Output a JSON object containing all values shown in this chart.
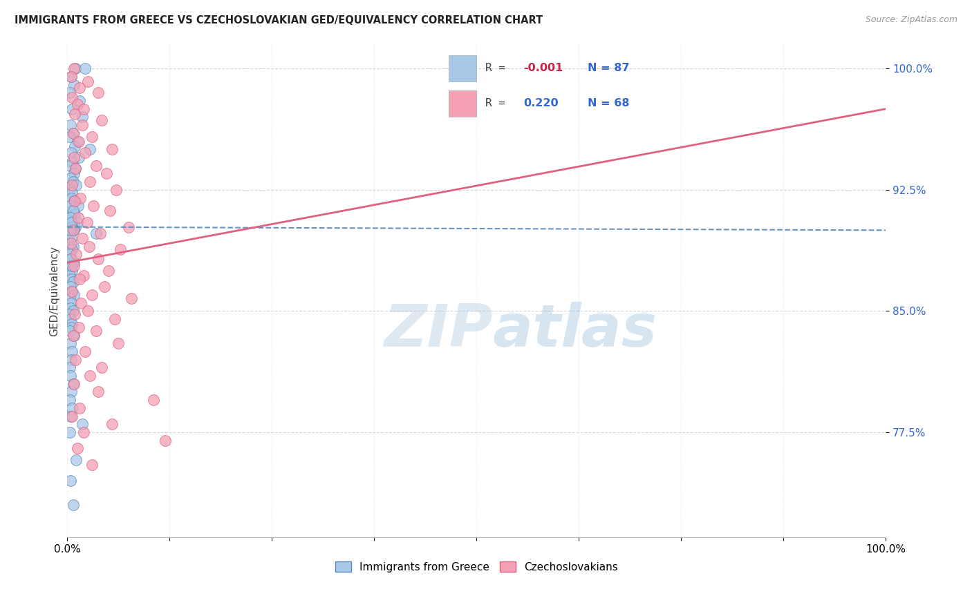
{
  "title": "IMMIGRANTS FROM GREECE VS CZECHOSLOVAKIAN GED/EQUIVALENCY CORRELATION CHART",
  "source": "Source: ZipAtlas.com",
  "ylabel": "GED/Equivalency",
  "yticks": [
    77.5,
    85.0,
    92.5,
    100.0
  ],
  "ytick_labels": [
    "77.5%",
    "85.0%",
    "92.5%",
    "100.0%"
  ],
  "xrange": [
    0.0,
    100.0
  ],
  "yrange": [
    71.0,
    101.5
  ],
  "color_blue": "#a8c8e8",
  "color_pink": "#f4a0b5",
  "trend_blue_color": "#5588bb",
  "trend_pink_color": "#e06080",
  "watermark_zip": "ZIP",
  "watermark_atlas": "atlas",
  "blue_r": -0.001,
  "blue_n": 87,
  "pink_r": 0.22,
  "pink_n": 68,
  "blue_trend_y0": 90.2,
  "blue_trend_y1": 90.0,
  "pink_trend_y0": 88.0,
  "pink_trend_y1": 97.5,
  "blue_points_x": [
    1.0,
    2.2,
    0.5,
    0.8,
    0.3,
    1.5,
    0.6,
    1.8,
    0.4,
    0.7,
    0.2,
    1.2,
    0.9,
    2.8,
    0.5,
    1.4,
    0.6,
    0.3,
    1.0,
    0.8,
    0.4,
    0.7,
    1.1,
    0.3,
    0.6,
    0.5,
    0.8,
    1.3,
    0.4,
    0.9,
    0.2,
    0.6,
    1.0,
    0.5,
    0.3,
    0.7,
    0.4,
    1.2,
    0.6,
    0.8,
    0.3,
    0.5,
    0.4,
    0.7,
    0.6,
    0.3,
    0.5,
    0.8,
    0.4,
    0.6,
    0.3,
    0.5,
    0.7,
    0.4,
    0.6,
    0.8,
    0.3,
    0.5,
    0.4,
    0.7,
    0.2,
    0.4,
    0.6,
    0.5,
    0.3,
    0.8,
    0.4,
    0.6,
    0.5,
    0.3,
    0.4,
    0.7,
    0.5,
    0.3,
    0.6,
    0.4,
    1.8,
    0.5,
    0.3,
    3.5,
    0.4,
    0.6,
    0.5,
    0.3,
    1.1,
    0.4,
    0.7
  ],
  "blue_points_y": [
    100.0,
    100.0,
    99.5,
    99.0,
    98.5,
    98.0,
    97.5,
    97.0,
    96.5,
    96.0,
    95.8,
    95.5,
    95.2,
    95.0,
    94.8,
    94.5,
    94.2,
    94.0,
    93.8,
    93.5,
    93.2,
    93.0,
    92.8,
    92.5,
    92.3,
    92.0,
    91.8,
    91.5,
    91.2,
    91.0,
    90.8,
    90.5,
    90.2,
    90.0,
    91.5,
    91.2,
    90.8,
    90.5,
    90.2,
    90.0,
    89.8,
    89.5,
    89.2,
    89.0,
    88.8,
    88.5,
    88.2,
    88.0,
    87.8,
    87.5,
    87.2,
    87.0,
    86.8,
    86.5,
    86.2,
    86.0,
    85.8,
    85.5,
    85.2,
    85.0,
    84.8,
    84.5,
    84.2,
    84.0,
    83.8,
    83.5,
    83.0,
    82.5,
    82.0,
    81.5,
    81.0,
    80.5,
    80.0,
    79.5,
    79.0,
    78.5,
    78.0,
    90.2,
    90.0,
    89.8,
    88.2,
    87.8,
    90.5,
    77.5,
    75.8,
    74.5,
    73.0
  ],
  "pink_points_x": [
    0.8,
    0.5,
    2.5,
    1.5,
    3.8,
    0.6,
    1.2,
    2.0,
    0.9,
    4.2,
    1.8,
    0.7,
    3.0,
    1.4,
    5.5,
    2.2,
    0.8,
    3.5,
    1.0,
    4.8,
    2.8,
    0.6,
    6.0,
    1.6,
    0.9,
    3.2,
    5.2,
    1.3,
    2.4,
    7.5,
    0.7,
    4.0,
    1.8,
    0.5,
    2.7,
    6.5,
    1.1,
    3.8,
    0.8,
    5.0,
    2.0,
    1.5,
    4.5,
    0.6,
    3.0,
    7.8,
    1.7,
    2.5,
    0.9,
    5.8,
    1.4,
    3.5,
    0.7,
    6.2,
    2.2,
    1.0,
    4.2,
    2.8,
    0.8,
    3.8,
    10.5,
    1.5,
    0.6,
    5.5,
    2.0,
    12.0,
    1.2,
    3.0
  ],
  "pink_points_y": [
    100.0,
    99.5,
    99.2,
    98.8,
    98.5,
    98.2,
    97.8,
    97.5,
    97.2,
    96.8,
    96.5,
    96.0,
    95.8,
    95.5,
    95.0,
    94.8,
    94.5,
    94.0,
    93.8,
    93.5,
    93.0,
    92.8,
    92.5,
    92.0,
    91.8,
    91.5,
    91.2,
    90.8,
    90.5,
    90.2,
    90.0,
    89.8,
    89.5,
    89.2,
    89.0,
    88.8,
    88.5,
    88.2,
    87.8,
    87.5,
    87.2,
    87.0,
    86.5,
    86.2,
    86.0,
    85.8,
    85.5,
    85.0,
    84.8,
    84.5,
    84.0,
    83.8,
    83.5,
    83.0,
    82.5,
    82.0,
    81.5,
    81.0,
    80.5,
    80.0,
    79.5,
    79.0,
    78.5,
    78.0,
    77.5,
    77.0,
    76.5,
    75.5
  ]
}
